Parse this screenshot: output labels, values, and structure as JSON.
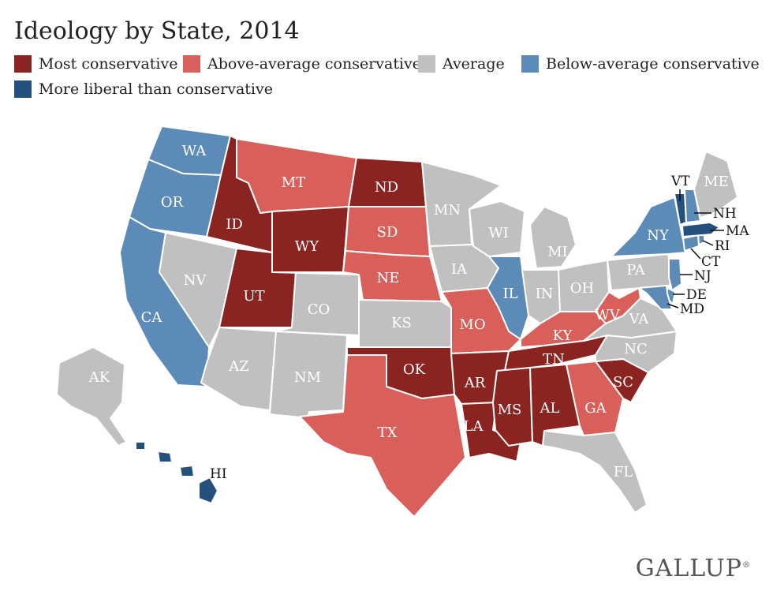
{
  "title": "Ideology by State, 2014",
  "legend": [
    {
      "key": "most",
      "label": "Most conservative",
      "color": "#8b2320"
    },
    {
      "key": "above",
      "label": "Above-average conservative",
      "color": "#d9605a"
    },
    {
      "key": "avg",
      "label": "Average",
      "color": "#c0c0c0"
    },
    {
      "key": "below",
      "label": "Below-average conservative",
      "color": "#5b8bb6"
    },
    {
      "key": "liberal",
      "label": "More liberal than conservative",
      "color": "#24507e"
    }
  ],
  "states": [
    {
      "code": "WA",
      "category": "below"
    },
    {
      "code": "OR",
      "category": "below"
    },
    {
      "code": "CA",
      "category": "below"
    },
    {
      "code": "ID",
      "category": "most"
    },
    {
      "code": "NV",
      "category": "avg"
    },
    {
      "code": "UT",
      "category": "most"
    },
    {
      "code": "AZ",
      "category": "avg"
    },
    {
      "code": "MT",
      "category": "above"
    },
    {
      "code": "WY",
      "category": "most"
    },
    {
      "code": "CO",
      "category": "avg"
    },
    {
      "code": "NM",
      "category": "avg"
    },
    {
      "code": "ND",
      "category": "most"
    },
    {
      "code": "SD",
      "category": "above"
    },
    {
      "code": "NE",
      "category": "above"
    },
    {
      "code": "KS",
      "category": "avg"
    },
    {
      "code": "OK",
      "category": "most"
    },
    {
      "code": "TX",
      "category": "above"
    },
    {
      "code": "MN",
      "category": "avg"
    },
    {
      "code": "IA",
      "category": "avg"
    },
    {
      "code": "MO",
      "category": "above"
    },
    {
      "code": "AR",
      "category": "most"
    },
    {
      "code": "LA",
      "category": "most"
    },
    {
      "code": "WI",
      "category": "avg"
    },
    {
      "code": "IL",
      "category": "below"
    },
    {
      "code": "MI",
      "category": "avg"
    },
    {
      "code": "IN",
      "category": "avg"
    },
    {
      "code": "OH",
      "category": "avg"
    },
    {
      "code": "KY",
      "category": "above"
    },
    {
      "code": "TN",
      "category": "most"
    },
    {
      "code": "MS",
      "category": "most"
    },
    {
      "code": "AL",
      "category": "most"
    },
    {
      "code": "GA",
      "category": "above"
    },
    {
      "code": "FL",
      "category": "avg"
    },
    {
      "code": "SC",
      "category": "most"
    },
    {
      "code": "NC",
      "category": "avg"
    },
    {
      "code": "VA",
      "category": "avg"
    },
    {
      "code": "WV",
      "category": "above"
    },
    {
      "code": "PA",
      "category": "avg"
    },
    {
      "code": "NY",
      "category": "below"
    },
    {
      "code": "VT",
      "category": "liberal"
    },
    {
      "code": "NH",
      "category": "below"
    },
    {
      "code": "ME",
      "category": "avg"
    },
    {
      "code": "MA",
      "category": "liberal"
    },
    {
      "code": "RI",
      "category": "below"
    },
    {
      "code": "CT",
      "category": "below"
    },
    {
      "code": "NJ",
      "category": "below"
    },
    {
      "code": "DE",
      "category": "below"
    },
    {
      "code": "MD",
      "category": "below"
    },
    {
      "code": "AK",
      "category": "avg"
    },
    {
      "code": "HI",
      "category": "liberal"
    }
  ],
  "brand": "GALLUP",
  "brand_mark": "®"
}
